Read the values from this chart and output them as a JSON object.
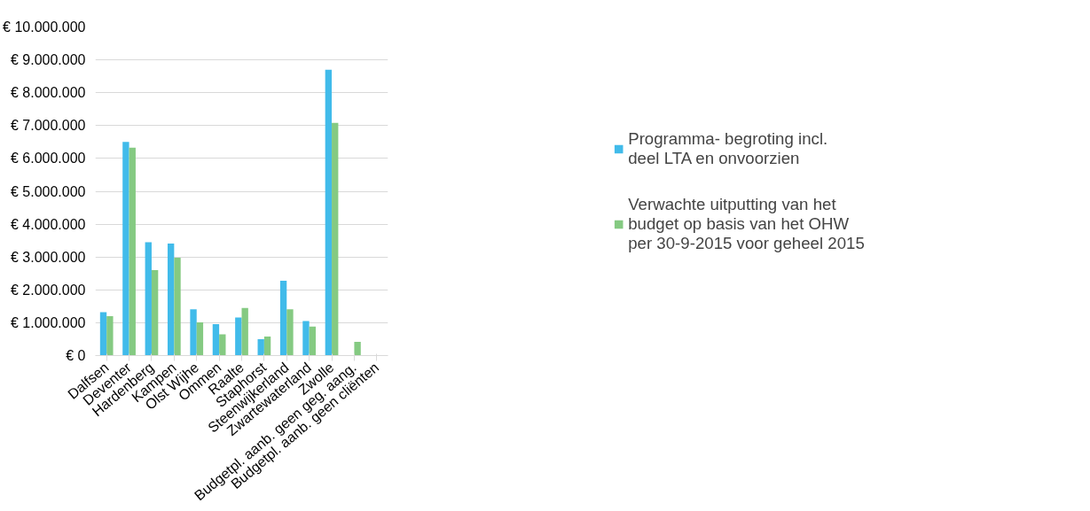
{
  "chart_data": {
    "type": "bar",
    "categories": [
      "Dalfsen",
      "Deventer",
      "Hardenberg",
      "Kampen",
      "Olst Wijhe",
      "Ommen",
      "Raalte",
      "Staphorst",
      "Steenwijkerland",
      "Zwartewaterland",
      "Zwolle",
      "Budgetpl. aanb. geen geg. aang.",
      "Budgetpl. aanb. geen cliënten"
    ],
    "series": [
      {
        "name": "Programma- begroting incl. deel LTA en onvoorzien",
        "color": "#41bbea",
        "values": [
          1320000,
          6500000,
          3450000,
          3410000,
          1410000,
          960000,
          1160000,
          500000,
          2280000,
          1050000,
          8700000,
          null,
          null
        ]
      },
      {
        "name": "Verwachte uitputting van het budget op basis van het OHW per 30-9-2015 voor geheel 2015",
        "color": "#85ca82",
        "values": [
          1200000,
          6330000,
          2600000,
          2980000,
          1010000,
          650000,
          1450000,
          580000,
          1410000,
          880000,
          7080000,
          420000,
          null
        ]
      }
    ],
    "ylim": [
      0,
      10000000
    ],
    "yticks": [
      {
        "value": 0,
        "label": "€ 0"
      },
      {
        "value": 1000000,
        "label": "€ 1.000.000"
      },
      {
        "value": 2000000,
        "label": "€ 2.000.000"
      },
      {
        "value": 3000000,
        "label": "€ 3.000.000"
      },
      {
        "value": 4000000,
        "label": "€ 4.000.000"
      },
      {
        "value": 5000000,
        "label": "€ 5.000.000"
      },
      {
        "value": 6000000,
        "label": "€ 6.000.000"
      },
      {
        "value": 7000000,
        "label": "€ 7.000.000"
      },
      {
        "value": 8000000,
        "label": "€ 8.000.000"
      },
      {
        "value": 9000000,
        "label": "€ 9.000.000"
      },
      {
        "value": 10000000,
        "label": "€ 10.000.000"
      }
    ],
    "grid": "y",
    "legend": "right"
  }
}
